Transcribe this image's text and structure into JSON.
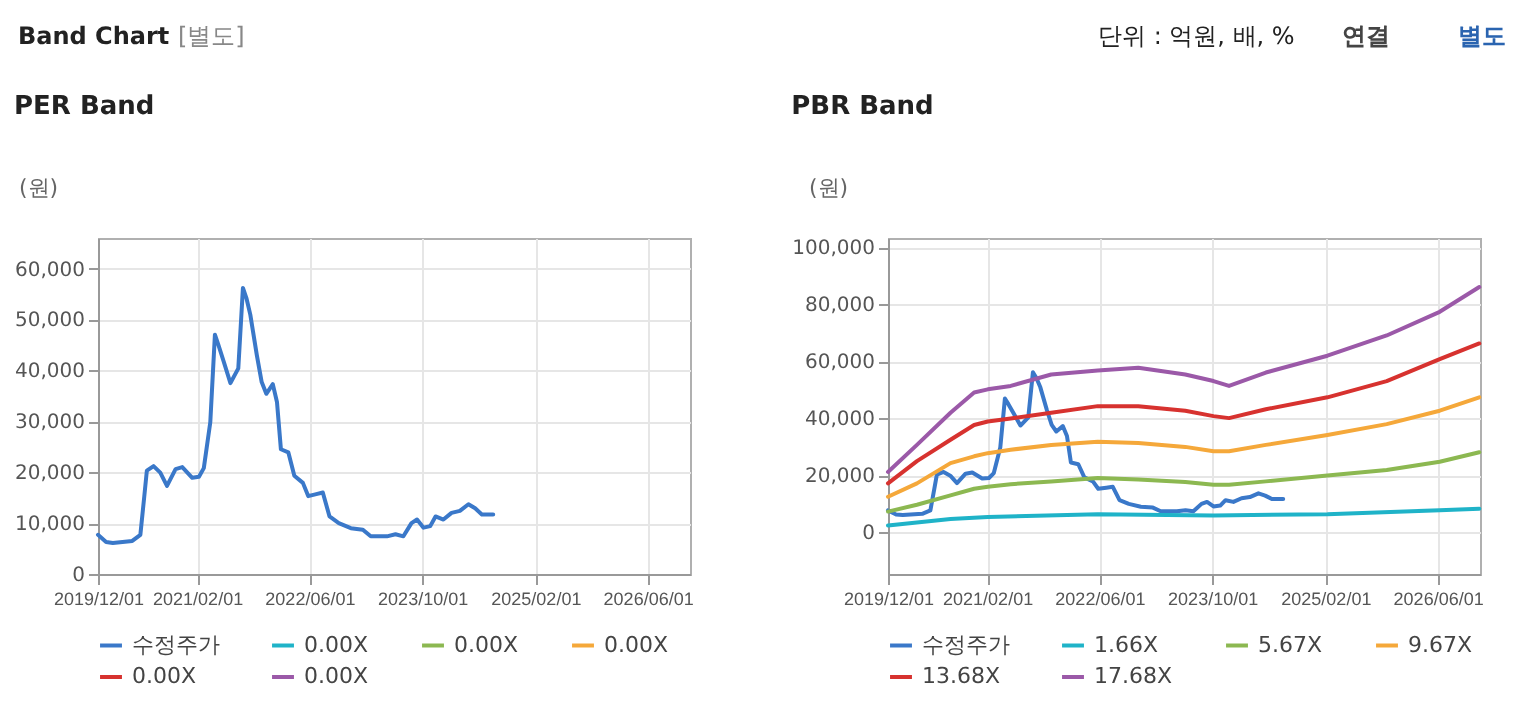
{
  "chart_data": [
    {
      "type": "line",
      "title": "PER Band",
      "ylabel": "(원)",
      "annotations": [
        "Band Chart",
        "[별도]",
        "단위 : 억원, 배, %",
        "연결",
        "별도"
      ],
      "x": [
        "2019-12-01",
        "2020-01-05",
        "2020-02-03",
        "2020-04-27",
        "2020-06-01",
        "2020-06-18",
        "2020-06-29",
        "2020-07-28",
        "2020-08-26",
        "2020-09-24",
        "2020-10-31",
        "2020-11-29",
        "2021-01-11",
        "2021-02-09",
        "2021-03-02",
        "2021-03-30",
        "2021-04-19",
        "2021-05-04",
        "2021-05-27",
        "2021-06-25",
        "2021-07-29",
        "2021-08-18",
        "2021-09-02",
        "2021-09-19",
        "2021-10-17",
        "2021-11-07",
        "2021-11-27",
        "2021-12-25",
        "2022-01-12",
        "2022-01-29",
        "2022-03-02",
        "2022-03-28",
        "2022-05-04",
        "2022-05-27",
        "2022-07-01",
        "2022-07-29",
        "2022-08-27",
        "2022-10-06",
        "2022-11-27",
        "2023-01-18",
        "2023-02-21",
        "2023-05-02",
        "2023-06-08",
        "2023-07-12",
        "2023-08-16",
        "2023-09-09",
        "2023-10-07",
        "2023-11-05",
        "2023-11-28",
        "2024-01-01",
        "2024-02-05",
        "2024-03-12",
        "2024-04-18",
        "2024-05-17",
        "2024-06-15",
        "2024-08-03"
      ],
      "series": [
        {
          "name": "수정주가",
          "color": "#3a78c9",
          "values": [
            7700,
            6300,
            6100,
            6500,
            7700,
            15300,
            20300,
            21200,
            19900,
            17300,
            20600,
            21000,
            18900,
            19100,
            20800,
            29800,
            47000,
            45000,
            41700,
            37500,
            40400,
            56200,
            54200,
            50900,
            43000,
            37700,
            35400,
            37300,
            33800,
            24500,
            23900,
            19300,
            17900,
            15300,
            15700,
            16000,
            11300,
            10000,
            9000,
            8700,
            7400,
            7400,
            7800,
            7400,
            10000,
            10700,
            9100,
            9400,
            11300,
            10700,
            12000,
            12400,
            13700,
            12900,
            11700,
            11700
          ]
        },
        {
          "name": "0.00X",
          "color": "#1fb3c8",
          "values": [
            null,
            null,
            null,
            null,
            null,
            null,
            null,
            null,
            null,
            null,
            null,
            null,
            null,
            null,
            null,
            null,
            null,
            null,
            null,
            null,
            null,
            null,
            null,
            null,
            null,
            null,
            null,
            null,
            null,
            null,
            null,
            null,
            null,
            null,
            null,
            null,
            null,
            null,
            null,
            null,
            null,
            null,
            null,
            null,
            null,
            null,
            null,
            null,
            null,
            null,
            null,
            null,
            null,
            null,
            null,
            null
          ]
        },
        {
          "name": "0.00X",
          "color": "#8cb851",
          "values": [
            null,
            null,
            null,
            null,
            null,
            null,
            null,
            null,
            null,
            null,
            null,
            null,
            null,
            null,
            null,
            null,
            null,
            null,
            null,
            null,
            null,
            null,
            null,
            null,
            null,
            null,
            null,
            null,
            null,
            null,
            null,
            null,
            null,
            null,
            null,
            null,
            null,
            null,
            null,
            null,
            null,
            null,
            null,
            null,
            null,
            null,
            null,
            null,
            null,
            null,
            null,
            null,
            null,
            null,
            null,
            null
          ]
        },
        {
          "name": "0.00X",
          "color": "#f5a83a",
          "values": [
            null,
            null,
            null,
            null,
            null,
            null,
            null,
            null,
            null,
            null,
            null,
            null,
            null,
            null,
            null,
            null,
            null,
            null,
            null,
            null,
            null,
            null,
            null,
            null,
            null,
            null,
            null,
            null,
            null,
            null,
            null,
            null,
            null,
            null,
            null,
            null,
            null,
            null,
            null,
            null,
            null,
            null,
            null,
            null,
            null,
            null,
            null,
            null,
            null,
            null,
            null,
            null,
            null,
            null,
            null,
            null
          ]
        },
        {
          "name": "0.00X",
          "color": "#d7322f",
          "values": [
            null,
            null,
            null,
            null,
            null,
            null,
            null,
            null,
            null,
            null,
            null,
            null,
            null,
            null,
            null,
            null,
            null,
            null,
            null,
            null,
            null,
            null,
            null,
            null,
            null,
            null,
            null,
            null,
            null,
            null,
            null,
            null,
            null,
            null,
            null,
            null,
            null,
            null,
            null,
            null,
            null,
            null,
            null,
            null,
            null,
            null,
            null,
            null,
            null,
            null,
            null,
            null,
            null,
            null,
            null,
            null
          ]
        },
        {
          "name": "0.00X",
          "color": "#9b59a8",
          "values": [
            null,
            null,
            null,
            null,
            null,
            null,
            null,
            null,
            null,
            null,
            null,
            null,
            null,
            null,
            null,
            null,
            null,
            null,
            null,
            null,
            null,
            null,
            null,
            null,
            null,
            null,
            null,
            null,
            null,
            null,
            null,
            null,
            null,
            null,
            null,
            null,
            null,
            null,
            null,
            null,
            null,
            null,
            null,
            null,
            null,
            null,
            null,
            null,
            null,
            null,
            null,
            null,
            null,
            null,
            null,
            null
          ]
        }
      ],
      "xlim": [
        "2019-12-01",
        "2026-12-01"
      ],
      "xticks": [
        {
          "value": "2019-12-01",
          "label": "2019/12/01"
        },
        {
          "value": "2021-02-01",
          "label": "2021/02/01"
        },
        {
          "value": "2022-06-01",
          "label": "2022/06/01"
        },
        {
          "value": "2023-10-01",
          "label": "2023/10/01"
        },
        {
          "value": "2025-02-01",
          "label": "2025/02/01"
        },
        {
          "value": "2026-06-01",
          "label": "2026/06/01"
        }
      ],
      "ylim": [
        0,
        66000
      ],
      "yticks": [
        0,
        {
          "value": 10000,
          "label": "10,000"
        },
        {
          "value": 20000,
          "label": "20,000"
        },
        {
          "value": 30000,
          "label": "30,000"
        },
        {
          "value": 40000,
          "label": "40,000"
        },
        {
          "value": 50000,
          "label": "50,000"
        },
        {
          "value": 60000,
          "label": "60,000"
        }
      ],
      "grid": true,
      "legend": "bottom",
      "marker": "none",
      "line_style": "solid"
    },
    {
      "type": "line",
      "title": "PBR Band",
      "ylabel": "(원)",
      "x": [
        "2019-12-01",
        "2020-01-05",
        "2020-02-03",
        "2020-04-27",
        "2020-06-01",
        "2020-06-18",
        "2020-06-29",
        "2020-07-28",
        "2020-08-26",
        "2020-09-24",
        "2020-10-31",
        "2020-11-29",
        "2021-01-11",
        "2021-02-09",
        "2021-03-02",
        "2021-03-30",
        "2021-04-19",
        "2021-05-04",
        "2021-05-27",
        "2021-06-25",
        "2021-07-29",
        "2021-08-18",
        "2021-09-02",
        "2021-09-19",
        "2021-10-17",
        "2021-11-07",
        "2021-11-27",
        "2021-12-25",
        "2022-01-12",
        "2022-01-29",
        "2022-03-02",
        "2022-03-28",
        "2022-05-04",
        "2022-05-27",
        "2022-07-01",
        "2022-07-29",
        "2022-08-27",
        "2022-10-06",
        "2022-11-27",
        "2023-01-18",
        "2023-02-21",
        "2023-05-02",
        "2023-06-08",
        "2023-07-12",
        "2023-08-16",
        "2023-09-09",
        "2023-10-07",
        "2023-11-05",
        "2023-11-28",
        "2024-01-01",
        "2024-02-05",
        "2024-03-12",
        "2024-04-18",
        "2024-05-17",
        "2024-06-15",
        "2024-08-03"
      ],
      "series": [
        {
          "name": "수정주가",
          "color": "#3a78c9",
          "values": [
            7700,
            6300,
            6100,
            6500,
            7700,
            15300,
            20300,
            21200,
            19900,
            17300,
            20600,
            21000,
            18900,
            19100,
            20800,
            29800,
            47000,
            45000,
            41700,
            37500,
            40400,
            56200,
            54200,
            50900,
            43000,
            37700,
            35400,
            37300,
            33800,
            24500,
            23900,
            19300,
            17900,
            15300,
            15700,
            16000,
            11300,
            10000,
            9000,
            8700,
            7400,
            7400,
            7800,
            7400,
            10000,
            10700,
            9100,
            9400,
            11300,
            10700,
            12000,
            12400,
            13700,
            12900,
            11700,
            11700
          ]
        },
        {
          "name": "1.66X",
          "color": "#1fb3c8",
          "x": [
            "2019-12-01",
            "2020-08-27",
            "2021-02-04",
            "2022-05-25",
            "2023-10-07",
            "2025-02-10",
            "2026-06-10",
            "2026-11-28"
          ],
          "values": [
            2400,
            4700,
            5400,
            6400,
            5900,
            6400,
            7800,
            8300
          ]
        },
        {
          "name": "5.67X",
          "color": "#8cb851",
          "x": [
            "2019-12-01",
            "2020-04-04",
            "2020-08-27",
            "2020-12-07",
            "2021-02-04",
            "2021-05-14",
            "2021-11-05",
            "2022-05-25",
            "2022-11-16",
            "2023-06-07",
            "2023-10-07",
            "2023-12-13",
            "2024-05-20",
            "2025-02-10",
            "2025-10-24",
            "2026-06-10",
            "2026-11-28"
          ],
          "values": [
            7300,
            9700,
            13000,
            15300,
            16000,
            16900,
            17900,
            19100,
            18600,
            17700,
            16700,
            16700,
            17900,
            20000,
            21900,
            24800,
            28100
          ]
        },
        {
          "name": "9.67X",
          "color": "#f5a83a",
          "x": [
            "2019-12-01",
            "2020-04-04",
            "2020-08-27",
            "2020-12-07",
            "2021-02-04",
            "2021-05-14",
            "2021-11-05",
            "2022-05-25",
            "2022-11-16",
            "2023-06-07",
            "2023-10-07",
            "2023-12-13",
            "2024-05-20",
            "2025-02-10",
            "2025-10-24",
            "2026-06-10",
            "2026-11-28"
          ],
          "values": [
            12500,
            17200,
            24300,
            26700,
            27800,
            29000,
            30700,
            31800,
            31400,
            30000,
            28500,
            28500,
            30700,
            34200,
            38000,
            42700,
            47400
          ]
        },
        {
          "name": "13.68X",
          "color": "#d7322f",
          "x": [
            "2019-12-01",
            "2020-04-04",
            "2020-08-27",
            "2020-12-07",
            "2021-02-04",
            "2021-05-14",
            "2021-11-05",
            "2022-05-25",
            "2022-11-16",
            "2023-06-07",
            "2023-10-07",
            "2023-12-13",
            "2024-05-20",
            "2025-02-10",
            "2025-10-24",
            "2026-06-10",
            "2026-11-28"
          ],
          "values": [
            17200,
            25000,
            32500,
            37700,
            38900,
            40000,
            42000,
            44300,
            44300,
            42700,
            40800,
            40100,
            43200,
            47400,
            53100,
            60800,
            66300
          ]
        },
        {
          "name": "17.68X",
          "color": "#9b59a8",
          "x": [
            "2019-12-01",
            "2020-04-04",
            "2020-08-27",
            "2020-12-07",
            "2021-02-04",
            "2021-05-14",
            "2021-11-05",
            "2022-05-25",
            "2022-11-16",
            "2023-06-07",
            "2023-10-07",
            "2023-12-13",
            "2024-05-20",
            "2025-02-10",
            "2025-10-24",
            "2026-06-10",
            "2026-11-28"
          ],
          "values": [
            21200,
            30700,
            42000,
            49100,
            50200,
            51400,
            55400,
            56800,
            57800,
            55400,
            53100,
            51400,
            56100,
            62000,
            69100,
            77400,
            86100
          ]
        }
      ],
      "xlim": [
        "2019-12-01",
        "2026-12-01"
      ],
      "xticks": [
        {
          "value": "2019-12-01",
          "label": "2019/12/01"
        },
        {
          "value": "2021-02-01",
          "label": "2021/02/01"
        },
        {
          "value": "2022-06-01",
          "label": "2022/06/01"
        },
        {
          "value": "2023-10-01",
          "label": "2023/10/01"
        },
        {
          "value": "2025-02-01",
          "label": "2025/02/01"
        },
        {
          "value": "2026-06-01",
          "label": "2026/06/01"
        }
      ],
      "ylim": [
        -14600,
        103300
      ],
      "yticks": [
        0,
        {
          "value": 20000,
          "label": "20,000"
        },
        {
          "value": 40000,
          "label": "40,000"
        },
        {
          "value": 60000,
          "label": "60,000"
        },
        {
          "value": 80000,
          "label": "80,000"
        },
        {
          "value": 100000,
          "label": "100,000"
        }
      ],
      "grid": true,
      "legend": "bottom",
      "marker": "none",
      "line_style": "solid"
    }
  ]
}
